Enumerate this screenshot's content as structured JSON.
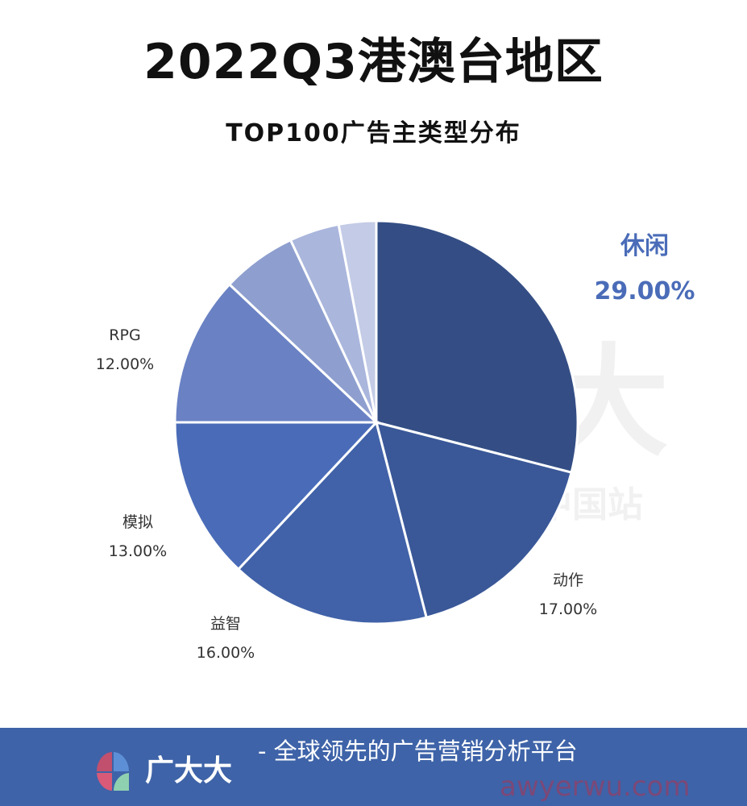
{
  "chart_data": {
    "type": "pie",
    "title": "2022Q3港澳台地区",
    "subtitle": "TOP100广告主类型分布",
    "start": "top",
    "direction": "clockwise",
    "slices": [
      {
        "label": "休闲",
        "value": 29.0,
        "display": "29.00%",
        "color": "#344e85",
        "highlight": true
      },
      {
        "label": "动作",
        "value": 17.0,
        "display": "17.00%",
        "color": "#3a5898"
      },
      {
        "label": "益智",
        "value": 16.0,
        "display": "16.00%",
        "color": "#4162a8"
      },
      {
        "label": "模拟",
        "value": 13.0,
        "display": "13.00%",
        "color": "#4a6cb8"
      },
      {
        "label": "RPG",
        "value": 12.0,
        "display": "12.00%",
        "color": "#6a82c4"
      },
      {
        "label": "",
        "value": 6.0,
        "color": "#8e9fcf"
      },
      {
        "label": "",
        "value": 4.0,
        "color": "#aab6dc"
      },
      {
        "label": "",
        "value": 3.0,
        "color": "#c3cbe6"
      }
    ],
    "highlight_label_color": "#4a6cb8"
  },
  "watermark": {
    "brand": "广大大",
    "sub": "SocialPeta 中国站"
  },
  "footer": {
    "brand": "广大大",
    "tagline": "- 全球领先的广告营销分析平台",
    "site_watermark": "awyerwu.com",
    "background": "#3e63a8"
  }
}
